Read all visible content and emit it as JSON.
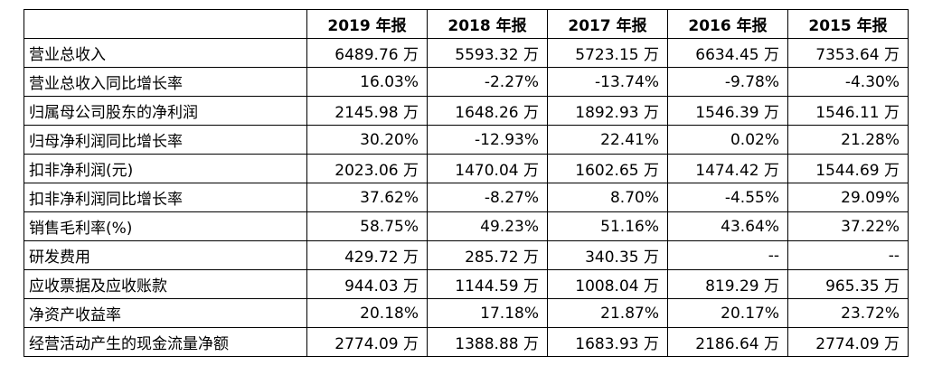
{
  "table": {
    "headers": [
      "",
      "2019 年报",
      "2018 年报",
      "2017 年报",
      "2016 年报",
      "2015 年报"
    ],
    "rows": [
      [
        "营业总收入",
        "6489.76 万",
        "5593.32 万",
        "5723.15 万",
        "6634.45 万",
        "7353.64 万"
      ],
      [
        "营业总收入同比增长率",
        "16.03%",
        "-2.27%",
        "-13.74%",
        "-9.78%",
        "-4.30%"
      ],
      [
        "归属母公司股东的净利润",
        "2145.98 万",
        "1648.26 万",
        "1892.93 万",
        "1546.39 万",
        "1546.11 万"
      ],
      [
        "归母净利润同比增长率",
        "30.20%",
        "-12.93%",
        "22.41%",
        "0.02%",
        "21.28%"
      ],
      [
        "扣非净利润(元)",
        "2023.06 万",
        "1470.04 万",
        "1602.65 万",
        "1474.42 万",
        "1544.69 万"
      ],
      [
        "扣非净利润同比增长率",
        "37.62%",
        "-8.27%",
        "8.70%",
        "-4.55%",
        "29.09%"
      ],
      [
        "销售毛利率(%)",
        "58.75%",
        "49.23%",
        "51.16%",
        "43.64%",
        "37.22%"
      ],
      [
        "研发费用",
        "429.72 万",
        "285.72 万",
        "340.35 万",
        "--",
        "--"
      ],
      [
        "应收票据及应收账款",
        "944.03 万",
        "1144.59 万",
        "1008.04 万",
        "819.29 万",
        "965.35 万"
      ],
      [
        "净资产收益率",
        "20.18%",
        "17.18%",
        "21.87%",
        "20.17%",
        "23.72%"
      ],
      [
        "经营活动产生的现金流量净额",
        "2774.09 万",
        "1388.88 万",
        "1683.93 万",
        "2186.64 万",
        "2774.09 万"
      ]
    ]
  }
}
